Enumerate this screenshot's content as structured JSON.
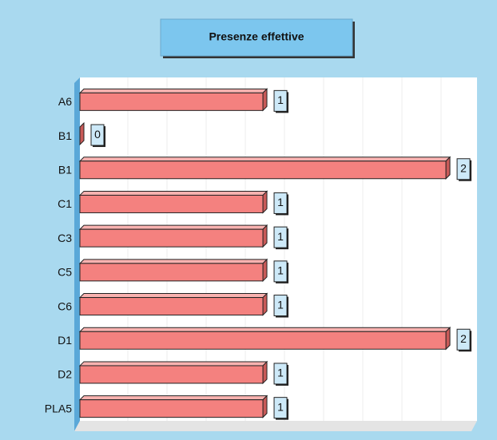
{
  "chart_data": {
    "type": "bar",
    "orientation": "horizontal",
    "title": "Presenze effettive",
    "categories": [
      "A6",
      "B1",
      "B1",
      "C1",
      "C3",
      "C5",
      "C6",
      "D1",
      "D2",
      "PLA5"
    ],
    "values": [
      1,
      0,
      2,
      1,
      1,
      1,
      1,
      2,
      1,
      1
    ],
    "color": "#f4817f",
    "xlim": [
      0,
      2.17
    ]
  }
}
